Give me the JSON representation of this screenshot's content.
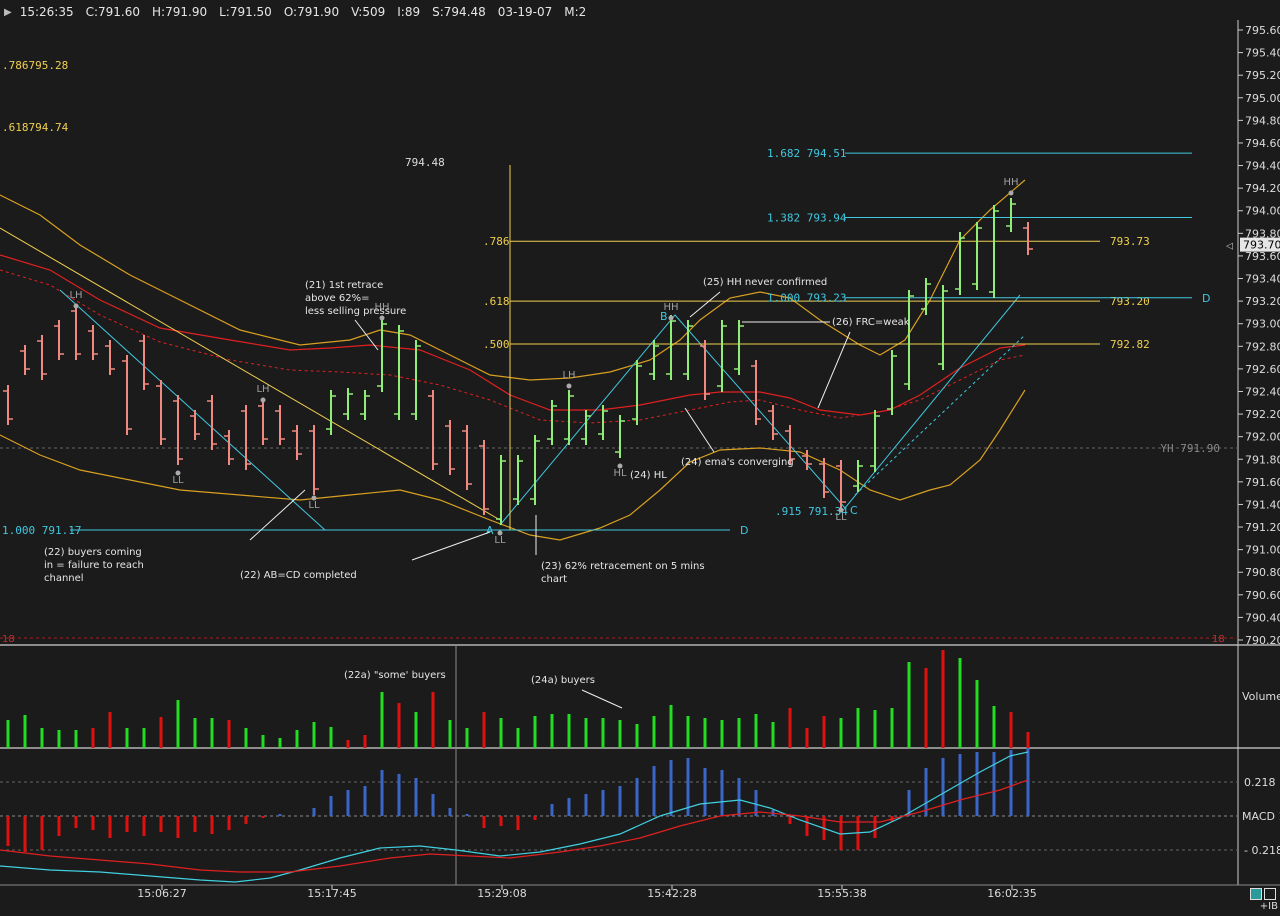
{
  "header": {
    "time": "15:26:35",
    "close": "C:791.60",
    "high": "H:791.90",
    "low": "L:791.50",
    "open": "O:791.90",
    "volume": "V:509",
    "interval": "I:89",
    "sma": "S:794.48",
    "date": "03-19-07",
    "mode": "M:2"
  },
  "colors": {
    "background": "#1b1b1b",
    "up_bar": "#90ee78",
    "down_bar": "#f08a80",
    "fib_yellow": "#f0d050",
    "fib_cyan": "#40c8e0",
    "ema_red": "#e02020",
    "band_orange": "#d8a020",
    "volume_up": "#22dd22",
    "volume_down": "#e01010",
    "macd_hist": "#3a66c8"
  },
  "price_axis": {
    "ticks": [
      "795.60",
      "795.40",
      "795.20",
      "795.00",
      "794.80",
      "794.60",
      "794.40",
      "794.20",
      "794.00",
      "793.80",
      "793.60",
      "793.40",
      "793.20",
      "793.00",
      "792.80",
      "792.60",
      "792.40",
      "792.20",
      "792.00",
      "791.80",
      "791.60",
      "791.40",
      "791.20",
      "791.00",
      "790.80",
      "790.60",
      "790.40",
      "790.20"
    ],
    "current_price": "793.70"
  },
  "time_axis": {
    "ticks": [
      "15:06:27",
      "15:17:45",
      "15:29:08",
      "15:42:28",
      "15:55:38",
      "16:02:35"
    ]
  },
  "chart_data": {
    "type": "candlestick",
    "ylim": [
      790.2,
      795.6
    ],
    "price_levels_left": [
      ".786795.28",
      ".618794.74",
      "1.000 791.17"
    ],
    "fib_levels_mid": [
      {
        "label": ".786",
        "value": 793.73,
        "right": "793.73"
      },
      {
        "label": ".618",
        "value": 793.2,
        "right": "793.20"
      },
      {
        "label": ".500",
        "value": 792.82,
        "right": "792.82"
      }
    ],
    "fib_levels_right": [
      {
        "label": "1.682 794.51",
        "value": 794.51
      },
      {
        "label": "1.382 793.94",
        "value": 793.94
      },
      {
        "label": "1.000 793.23",
        "value": 793.23
      },
      {
        "label": ".915 791.34",
        "value": 791.34
      }
    ],
    "yesterday_high": "YH 791.90",
    "level_794_48": "794.48",
    "pivot_labels": [
      "LH",
      "LL",
      "LH",
      "LL",
      "HH",
      "LL",
      "LH",
      "HL",
      "HH",
      "LL",
      "HH"
    ],
    "point_labels": [
      "A",
      "B",
      "C",
      "D",
      "D"
    ],
    "annotations": [
      "(21) 1st retrace above 62%= less selling pressure",
      "(22) buyers coming in = failure to reach channel",
      "(22) AB=CD completed",
      "(23) 62% retracement on 5 mins chart",
      "(24) HL",
      "(24) ema's converging",
      "(25) HH never confirmed",
      "(26) FRC=weak",
      "(22a) \"some' buyers",
      "(24a) buyers"
    ]
  },
  "volume_panel": {
    "label": "Volume"
  },
  "macd_panel": {
    "label": "MACD 1",
    "upper": "0.218",
    "lower": "- 0.218"
  },
  "footer": {
    "ib": "+IB"
  }
}
